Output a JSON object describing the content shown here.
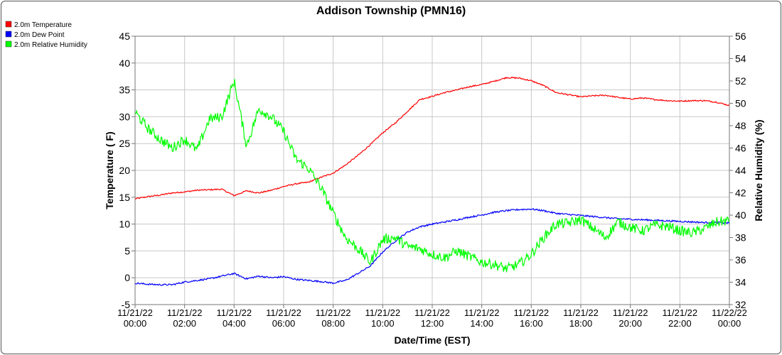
{
  "chart_data": {
    "type": "line",
    "title": "Addison Township (PMN16)",
    "xlabel": "Date/Time (EST)",
    "ylabel": "Temperature ( F)",
    "y2label": "Relative Humidity (%)",
    "x_range": [
      "11/21/22 00:00",
      "11/22/22 00:00"
    ],
    "ylim": [
      -5,
      45
    ],
    "y2lim": [
      32,
      56
    ],
    "y_ticks": [
      -5,
      0,
      5,
      10,
      15,
      20,
      25,
      30,
      35,
      40,
      45
    ],
    "y2_ticks": [
      32,
      34,
      36,
      38,
      40,
      42,
      44,
      46,
      48,
      50,
      52,
      54,
      56
    ],
    "x_ticks": [
      {
        "date": "11/21/22",
        "time": "00:00"
      },
      {
        "date": "11/21/22",
        "time": "02:00"
      },
      {
        "date": "11/21/22",
        "time": "04:00"
      },
      {
        "date": "11/21/22",
        "time": "06:00"
      },
      {
        "date": "11/21/22",
        "time": "08:00"
      },
      {
        "date": "11/21/22",
        "time": "10:00"
      },
      {
        "date": "11/21/22",
        "time": "12:00"
      },
      {
        "date": "11/21/22",
        "time": "14:00"
      },
      {
        "date": "11/21/22",
        "time": "16:00"
      },
      {
        "date": "11/21/22",
        "time": "18:00"
      },
      {
        "date": "11/21/22",
        "time": "20:00"
      },
      {
        "date": "11/21/22",
        "time": "22:00"
      },
      {
        "date": "11/22/22",
        "time": "00:00"
      }
    ],
    "grid": true,
    "legend_position": "top-left",
    "series": [
      {
        "name": "2.0m Temperature",
        "color": "#ff0000",
        "axis": "left",
        "x": [
          "00:00",
          "00:30",
          "01:00",
          "01:30",
          "02:00",
          "02:30",
          "03:00",
          "03:30",
          "04:00",
          "04:30",
          "05:00",
          "05:30",
          "06:00",
          "06:30",
          "07:00",
          "07:30",
          "08:00",
          "08:30",
          "09:00",
          "09:30",
          "10:00",
          "10:30",
          "11:00",
          "11:30",
          "12:00",
          "12:30",
          "13:00",
          "13:30",
          "14:00",
          "14:30",
          "15:00",
          "15:30",
          "16:00",
          "16:30",
          "17:00",
          "17:30",
          "18:00",
          "18:30",
          "19:00",
          "19:30",
          "20:00",
          "20:30",
          "21:00",
          "21:30",
          "22:00",
          "22:30",
          "23:00",
          "23:30",
          "24:00"
        ],
        "values": [
          14.7,
          15.1,
          15.4,
          15.8,
          16.0,
          16.3,
          16.4,
          16.5,
          15.3,
          16.2,
          15.8,
          16.3,
          17.0,
          17.5,
          17.8,
          18.7,
          19.5,
          21.0,
          22.8,
          24.8,
          27.0,
          28.8,
          31.0,
          33.2,
          33.8,
          34.5,
          35.0,
          35.6,
          36.0,
          36.6,
          37.3,
          37.2,
          36.7,
          35.8,
          34.5,
          34.1,
          33.7,
          33.9,
          34.0,
          33.6,
          33.3,
          33.5,
          33.2,
          33.0,
          32.9,
          33.0,
          33.0,
          32.7,
          32.1
        ]
      },
      {
        "name": "2.0m Dew Point",
        "color": "#0000ff",
        "axis": "left",
        "x": [
          "00:00",
          "00:30",
          "01:00",
          "01:30",
          "02:00",
          "02:30",
          "03:00",
          "03:30",
          "04:00",
          "04:30",
          "05:00",
          "05:30",
          "06:00",
          "06:30",
          "07:00",
          "07:30",
          "08:00",
          "08:30",
          "09:00",
          "09:30",
          "10:00",
          "10:30",
          "11:00",
          "11:30",
          "12:00",
          "12:30",
          "13:00",
          "13:30",
          "14:00",
          "14:30",
          "15:00",
          "15:30",
          "16:00",
          "16:30",
          "17:00",
          "17:30",
          "18:00",
          "18:30",
          "19:00",
          "19:30",
          "20:00",
          "20:30",
          "21:00",
          "21:30",
          "22:00",
          "22:30",
          "23:00",
          "23:30",
          "24:00"
        ],
        "values": [
          -1.0,
          -1.2,
          -1.3,
          -1.3,
          -0.8,
          -0.5,
          -0.2,
          0.3,
          0.8,
          -0.2,
          0.3,
          0.0,
          0.2,
          -0.3,
          -0.5,
          -0.7,
          -1.0,
          -0.5,
          0.8,
          2.2,
          4.8,
          6.8,
          8.5,
          9.5,
          10.0,
          10.4,
          10.8,
          11.3,
          11.7,
          12.2,
          12.5,
          12.7,
          12.8,
          12.5,
          12.0,
          11.8,
          11.6,
          11.4,
          11.2,
          11.0,
          10.9,
          10.8,
          10.7,
          10.6,
          10.5,
          10.4,
          10.3,
          10.3,
          10.2
        ]
      },
      {
        "name": "2.0m Relative Humidity",
        "color": "#00ff00",
        "axis": "right",
        "x": [
          "00:00",
          "00:30",
          "01:00",
          "01:30",
          "02:00",
          "02:30",
          "03:00",
          "03:30",
          "04:00",
          "04:30",
          "05:00",
          "05:30",
          "06:00",
          "06:30",
          "07:00",
          "07:30",
          "08:00",
          "08:30",
          "09:00",
          "09:30",
          "10:00",
          "10:30",
          "11:00",
          "11:30",
          "12:00",
          "12:30",
          "13:00",
          "13:30",
          "14:00",
          "14:30",
          "15:00",
          "15:30",
          "16:00",
          "16:30",
          "17:00",
          "17:30",
          "18:00",
          "18:30",
          "19:00",
          "19:30",
          "20:00",
          "20:30",
          "21:00",
          "21:30",
          "22:00",
          "22:30",
          "23:00",
          "23:30",
          "24:00"
        ],
        "values": [
          49.2,
          47.8,
          46.8,
          46.0,
          46.8,
          45.8,
          48.6,
          48.8,
          52.0,
          46.2,
          49.5,
          48.8,
          47.5,
          45.0,
          44.2,
          42.5,
          40.2,
          38.0,
          37.0,
          35.8,
          37.8,
          38.0,
          37.2,
          37.0,
          36.5,
          36.2,
          36.8,
          36.3,
          35.8,
          35.6,
          35.2,
          35.6,
          36.5,
          38.0,
          39.2,
          39.3,
          39.6,
          38.8,
          38.0,
          39.4,
          38.9,
          38.6,
          39.1,
          39.0,
          38.6,
          38.4,
          38.8,
          39.4,
          39.5
        ]
      }
    ]
  }
}
